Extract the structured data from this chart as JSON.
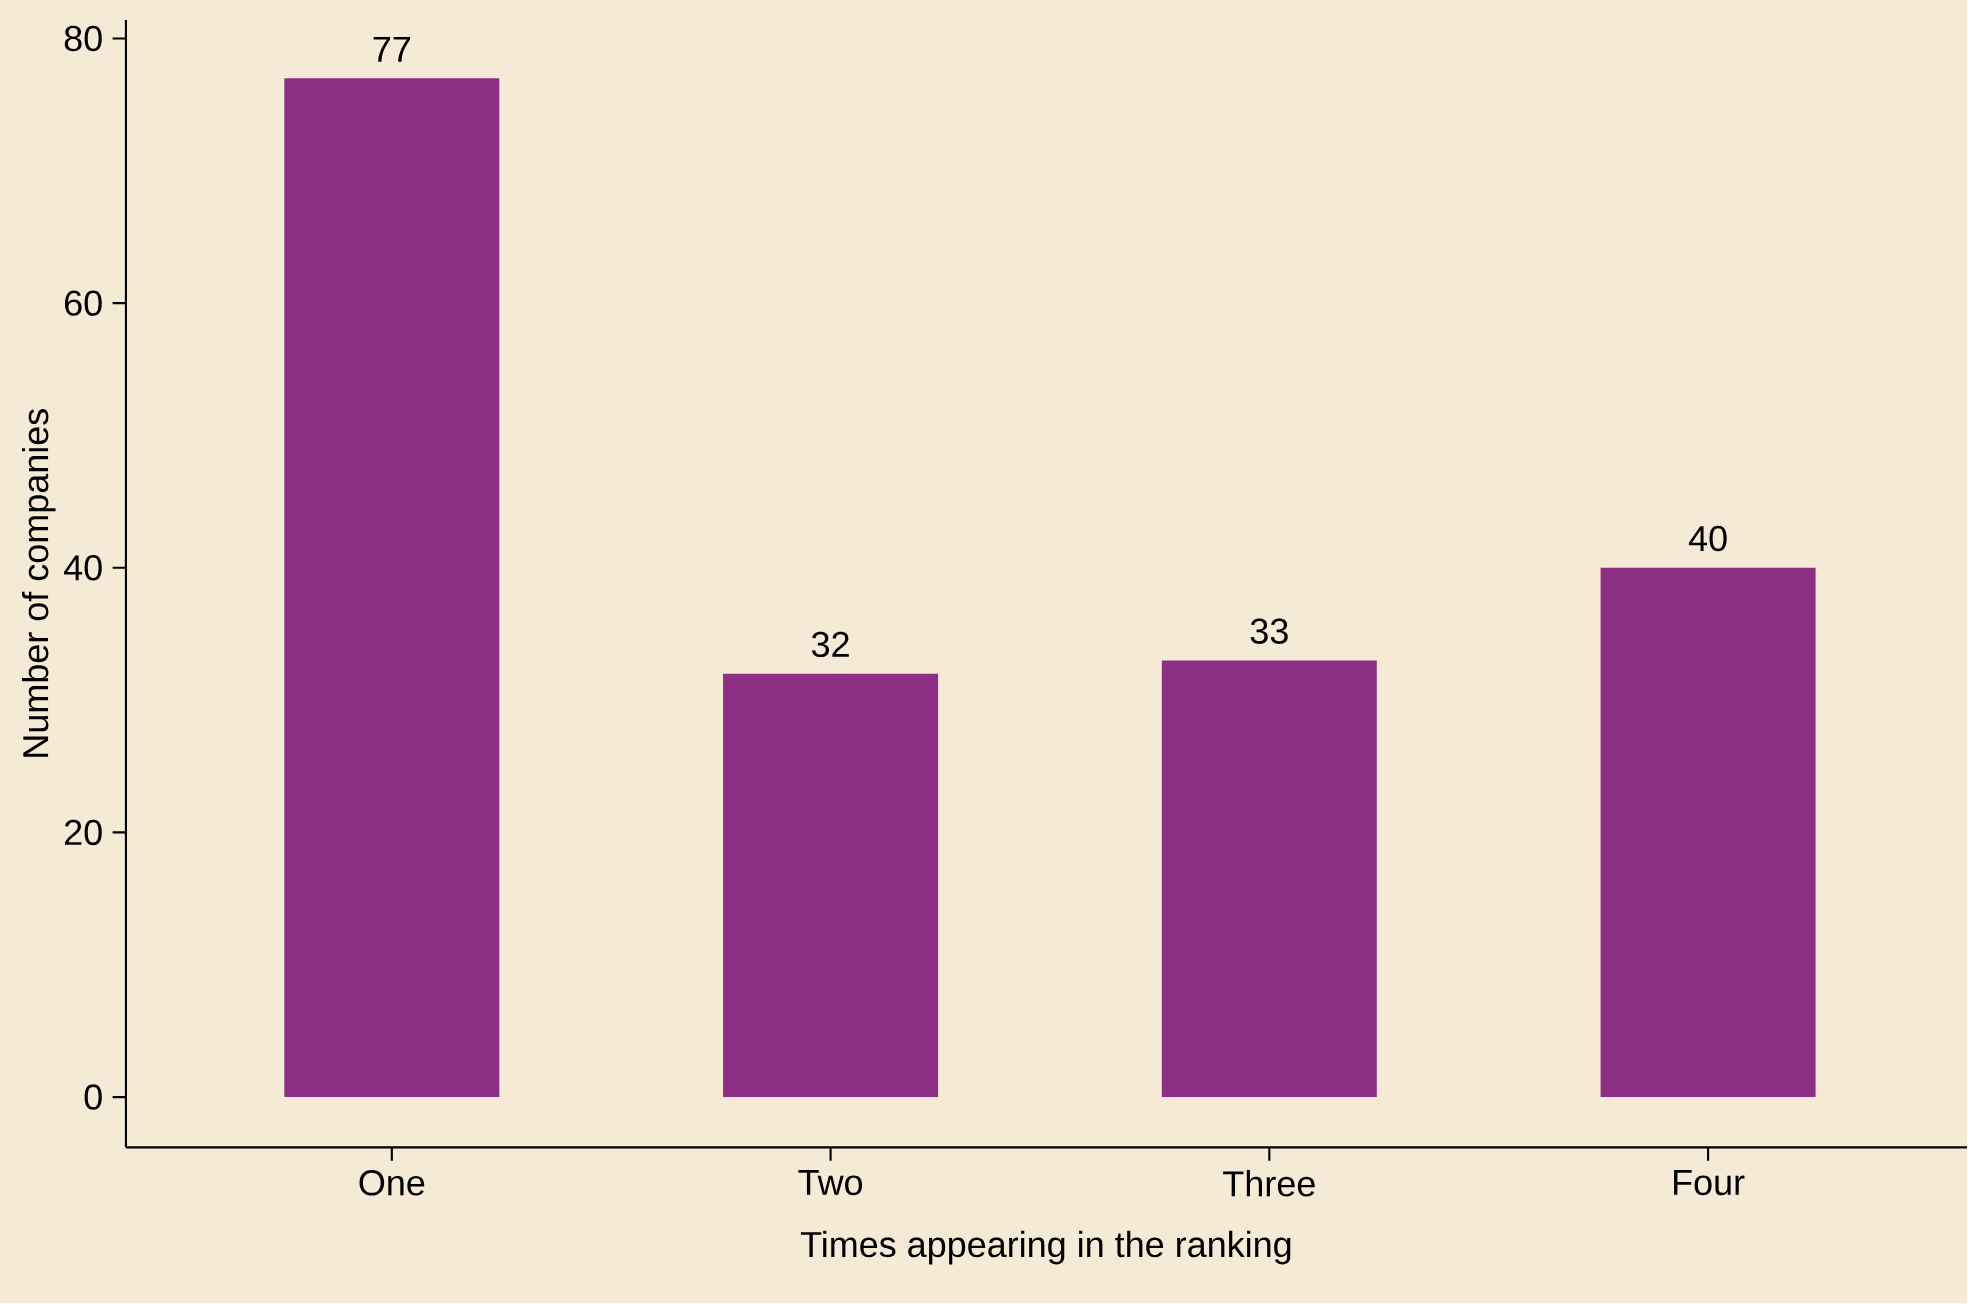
{
  "chart_data": {
    "type": "bar",
    "xlabel": "Times appearing in the ranking",
    "ylabel": "Number of companies",
    "categories": [
      "One",
      "Two",
      "Three",
      "Four"
    ],
    "values": [
      77,
      32,
      33,
      40
    ],
    "color": "#8e2f86",
    "ylim": [
      -3.8,
      81.4
    ],
    "yticks": [
      0,
      20,
      40,
      60,
      80
    ],
    "data_labels": true
  }
}
